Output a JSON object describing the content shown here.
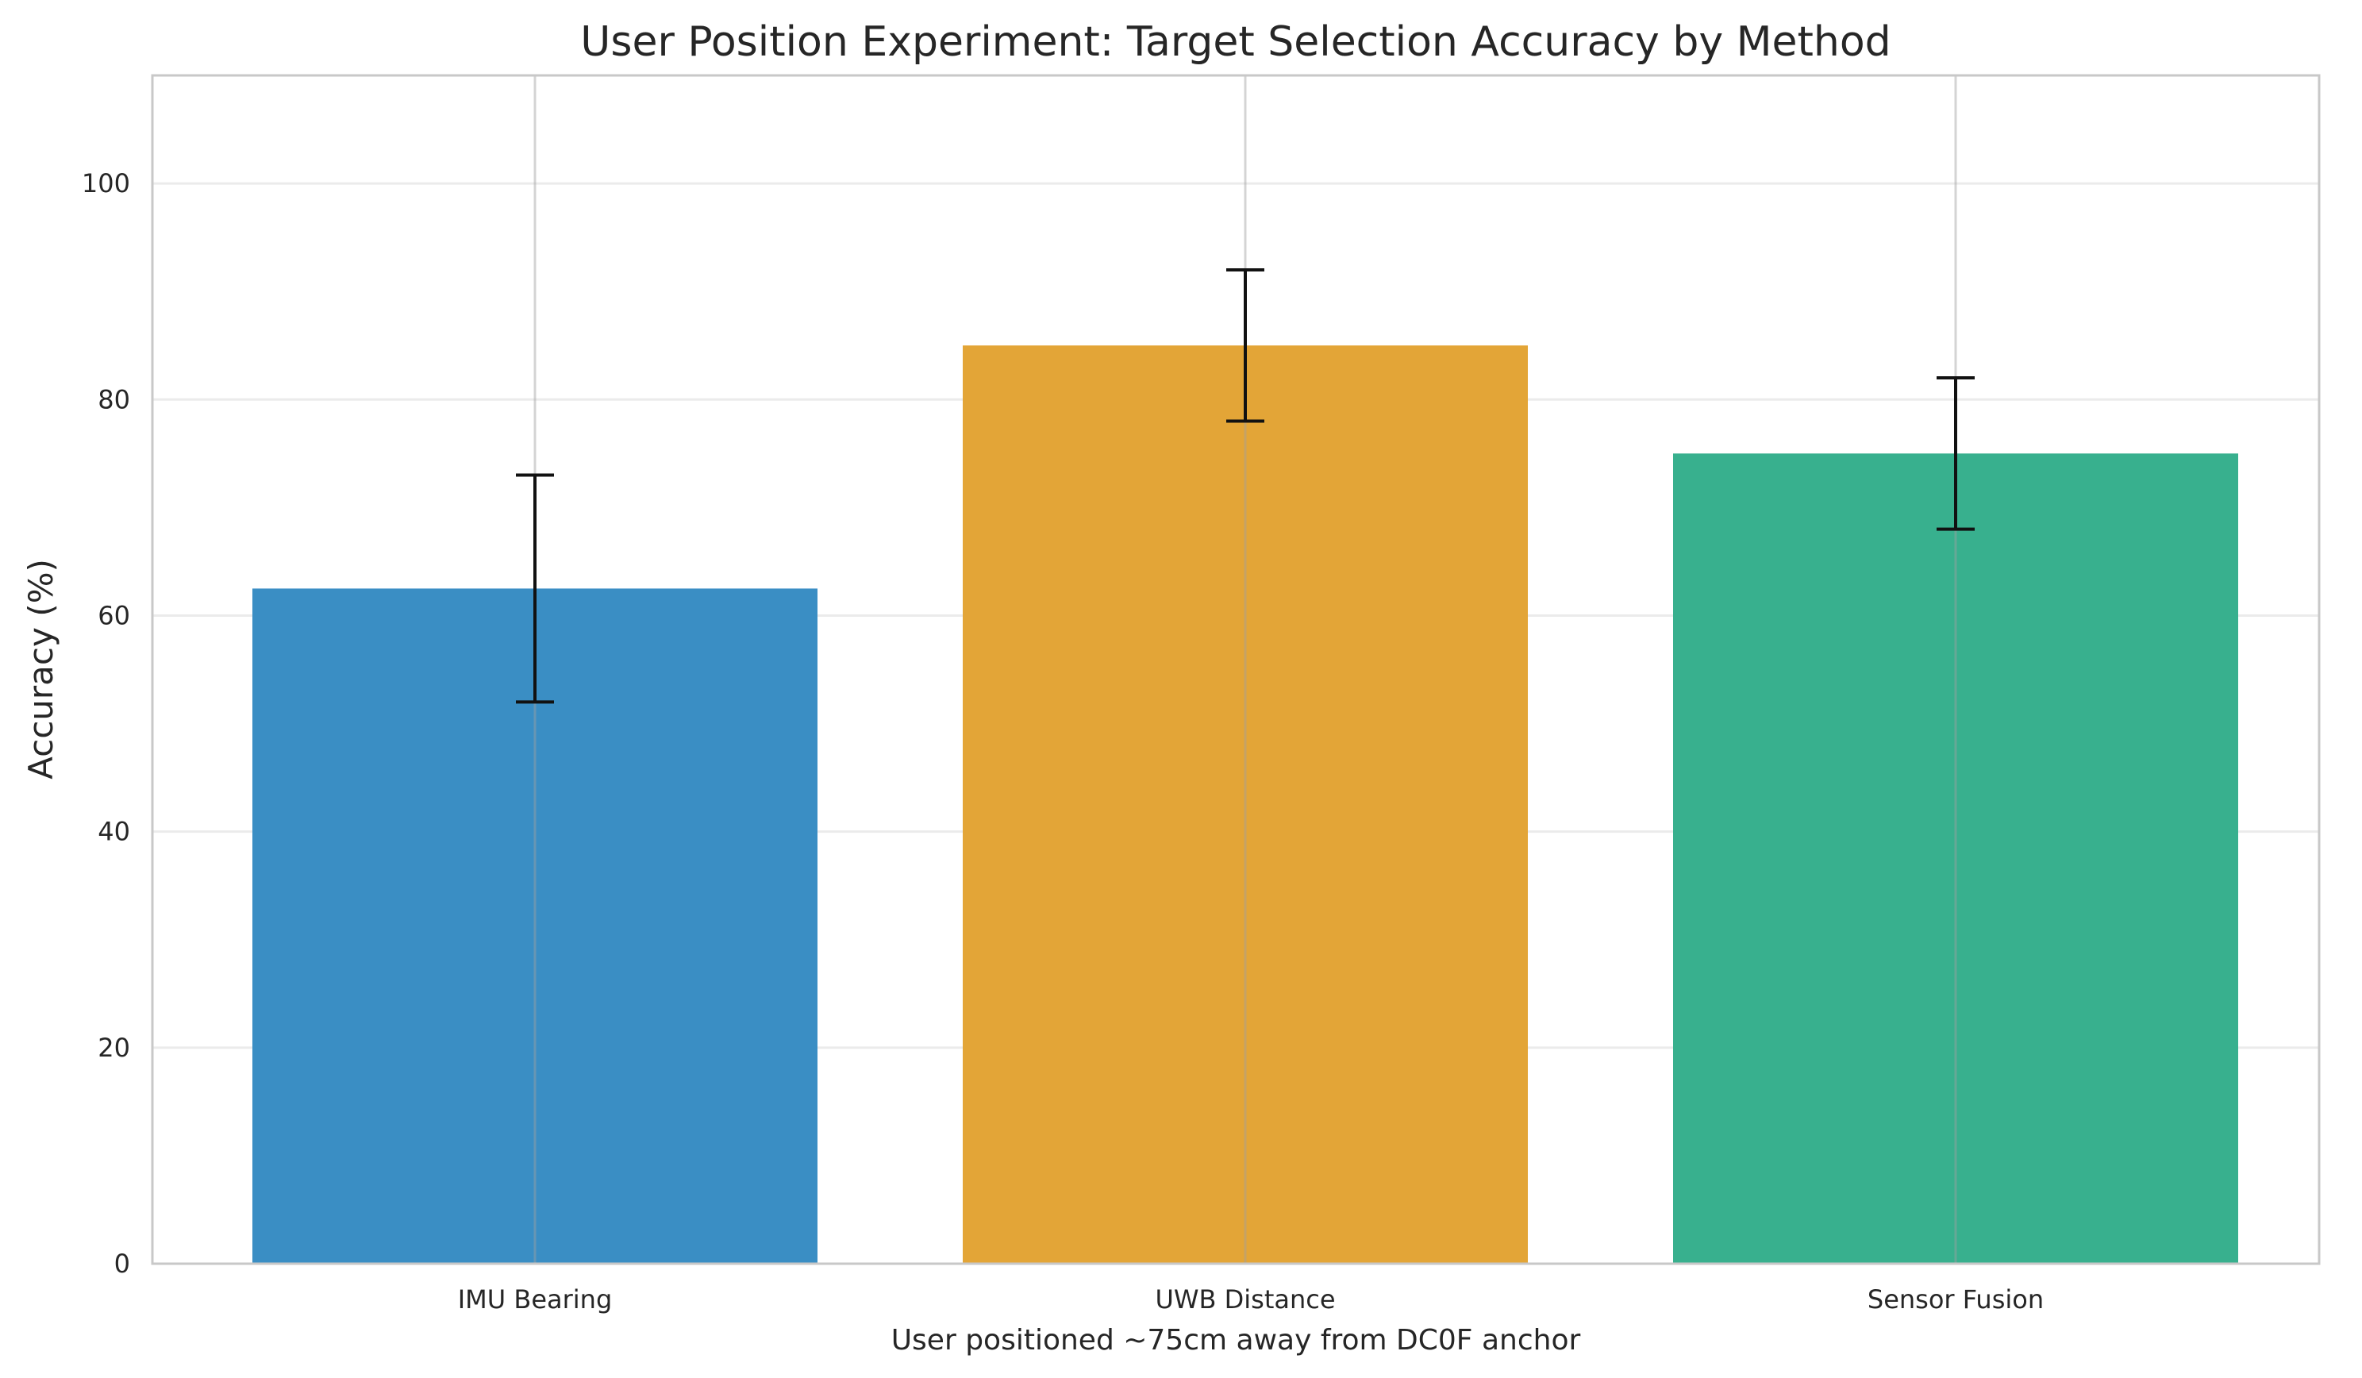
{
  "chart_data": {
    "type": "bar",
    "title": "User Position Experiment: Target Selection Accuracy by Method",
    "xlabel": "User positioned ~75cm away from DC0F anchor",
    "ylabel": "Accuracy (%)",
    "categories": [
      "IMU Bearing",
      "UWB Distance",
      "Sensor Fusion"
    ],
    "values": [
      62.5,
      85.0,
      75.0
    ],
    "error_low": [
      52.0,
      78.0,
      68.0
    ],
    "error_high": [
      73.0,
      92.0,
      82.0
    ],
    "colors": [
      "#3a8ec4",
      "#e3a537",
      "#38b08e"
    ],
    "ylim": [
      0,
      110
    ],
    "yticks": [
      0,
      20,
      40,
      60,
      80,
      100
    ],
    "grid": true
  }
}
